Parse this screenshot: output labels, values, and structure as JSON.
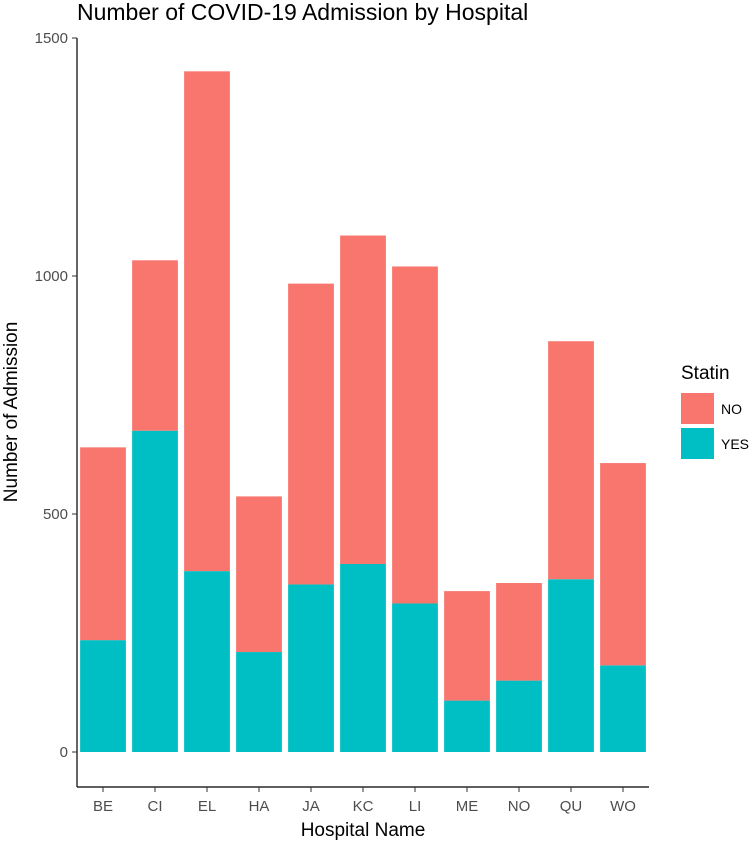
{
  "chart_data": {
    "type": "bar",
    "stacked": true,
    "title": "Number of COVID-19 Admission by Hospital",
    "xlabel": "Hospital Name",
    "ylabel": "Number of Admission",
    "ylim": [
      0,
      1500
    ],
    "yticks": [
      0,
      500,
      1000,
      1500
    ],
    "grid": false,
    "legend": {
      "title": "Statin",
      "position": "right"
    },
    "categories": [
      "BE",
      "CI",
      "EL",
      "HA",
      "JA",
      "KC",
      "LI",
      "ME",
      "NO",
      "QU",
      "WO"
    ],
    "series": [
      {
        "name": "YES",
        "color": "#00BFC4",
        "values": [
          235,
          675,
          380,
          210,
          352,
          395,
          312,
          108,
          150,
          363,
          182
        ]
      },
      {
        "name": "NO",
        "color": "#F8766D",
        "values": [
          405,
          358,
          1050,
          327,
          632,
          690,
          708,
          230,
          205,
          500,
          425
        ]
      }
    ],
    "legend_order": [
      "NO",
      "YES"
    ]
  }
}
